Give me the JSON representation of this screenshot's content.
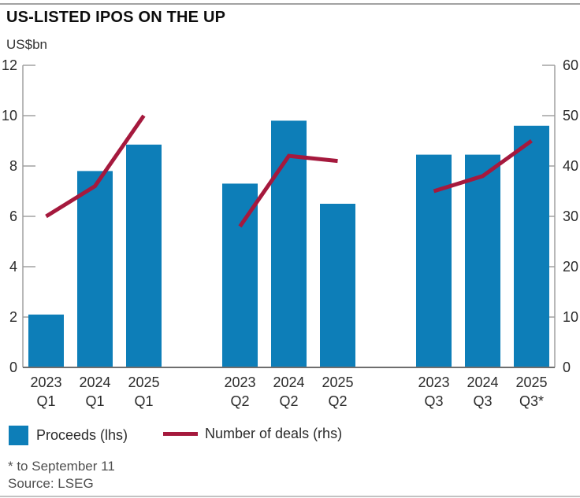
{
  "title": "US-LISTED IPOS ON THE UP",
  "chart_data": {
    "type": "bar+line",
    "title": "US-LISTED IPOS ON THE UP",
    "left_axis": {
      "label": "US$bn",
      "min": 0,
      "max": 12,
      "ticks": [
        0,
        2,
        4,
        6,
        8,
        10,
        12
      ]
    },
    "right_axis": {
      "label": "",
      "min": 0,
      "max": 60,
      "ticks": [
        0,
        10,
        20,
        30,
        40,
        50,
        60
      ]
    },
    "grid": false,
    "legend_position": "bottom",
    "series": [
      {
        "name": "Proceeds (lhs)",
        "type": "bar",
        "color": "#0d7eb8",
        "axis": "left"
      },
      {
        "name": "Number of deals (rhs)",
        "type": "line",
        "color": "#a5193d",
        "axis": "right"
      }
    ],
    "groups": [
      {
        "name": "Q1",
        "points": [
          {
            "year": "2023",
            "quarter": "Q1",
            "proceeds_usd_bn": 2.1,
            "deals": 30
          },
          {
            "year": "2024",
            "quarter": "Q1",
            "proceeds_usd_bn": 7.8,
            "deals": 36
          },
          {
            "year": "2025",
            "quarter": "Q1",
            "proceeds_usd_bn": 8.85,
            "deals": 50
          }
        ]
      },
      {
        "name": "Q2",
        "points": [
          {
            "year": "2023",
            "quarter": "Q2",
            "proceeds_usd_bn": 7.3,
            "deals": 28
          },
          {
            "year": "2024",
            "quarter": "Q2",
            "proceeds_usd_bn": 9.8,
            "deals": 42
          },
          {
            "year": "2025",
            "quarter": "Q2",
            "proceeds_usd_bn": 6.5,
            "deals": 41
          }
        ]
      },
      {
        "name": "Q3",
        "points": [
          {
            "year": "2023",
            "quarter": "Q3",
            "proceeds_usd_bn": 8.45,
            "deals": 35
          },
          {
            "year": "2024",
            "quarter": "Q3",
            "proceeds_usd_bn": 8.45,
            "deals": 38
          },
          {
            "year": "2025",
            "quarter": "Q3*",
            "proceeds_usd_bn": 9.6,
            "deals": 45
          }
        ]
      }
    ]
  },
  "legend": {
    "bar_label": "Proceeds (lhs)",
    "line_label": "Number of deals (rhs)"
  },
  "footnote": "* to September 11",
  "source": "Source: LSEG",
  "colors": {
    "bar": "#0d7eb8",
    "line": "#a5193d",
    "axis": "#9b9b9b",
    "baseline": "#6e6e6e",
    "tick_text": "#2b2b2b",
    "rule": "#a2a2a2"
  }
}
